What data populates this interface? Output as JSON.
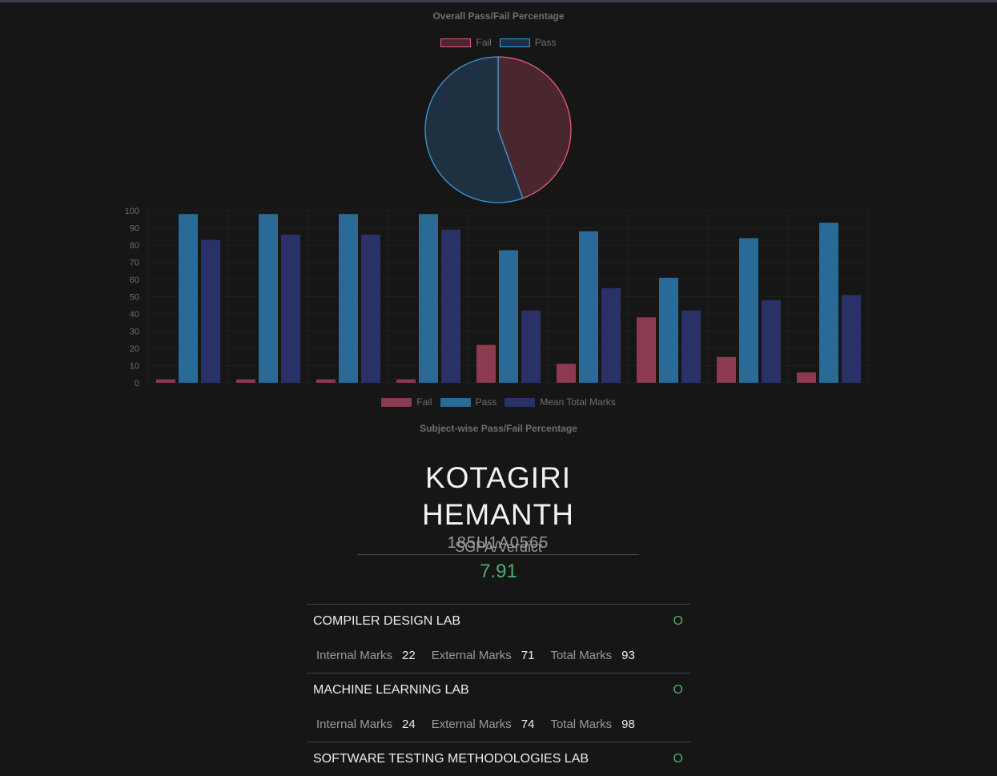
{
  "pie_chart": {
    "title": "Overall Pass/Fail Percentage",
    "legend": [
      {
        "label": "Fail",
        "fill": "#4a262f",
        "stroke": "#e85b7b"
      },
      {
        "label": "Pass",
        "fill": "#1d3142",
        "stroke": "#3a9ad9"
      }
    ]
  },
  "bar_chart": {
    "title": "Subject-wise Pass/Fail Percentage",
    "legend": [
      {
        "label": "Fail",
        "color": "#8c3a4f"
      },
      {
        "label": "Pass",
        "color": "#2a6a96"
      },
      {
        "label": "Mean Total Marks",
        "color": "#2a3166"
      }
    ]
  },
  "chart_data": [
    {
      "type": "pie",
      "title": "Overall Pass/Fail Percentage",
      "labels": [
        "Fail",
        "Pass"
      ],
      "values": [
        44.5,
        55.5
      ],
      "colors": [
        "#e85b7b",
        "#3a9ad9"
      ],
      "legend": "top"
    },
    {
      "type": "bar",
      "title": "Subject-wise Pass/Fail Percentage",
      "categories": [
        "",
        "",
        "",
        "",
        "",
        "",
        "",
        "",
        ""
      ],
      "series": [
        {
          "name": "Fail",
          "values": [
            2,
            2,
            2,
            2,
            22,
            11,
            38,
            15,
            6
          ],
          "color": "#8c3a4f"
        },
        {
          "name": "Pass",
          "values": [
            98,
            98,
            98,
            98,
            77,
            88,
            61,
            84,
            93
          ],
          "color": "#2a6a96"
        },
        {
          "name": "Mean Total Marks",
          "values": [
            83,
            86,
            86,
            89,
            42,
            55,
            42,
            48,
            51
          ],
          "color": "#2a3166"
        }
      ],
      "yticks": [
        "0",
        "10",
        "20",
        "30",
        "40",
        "50",
        "60",
        "70",
        "80",
        "90",
        "100"
      ],
      "ylim": [
        0,
        100
      ],
      "grid": true,
      "legend": "bottom"
    }
  ],
  "student": {
    "name": "KOTAGIRI HEMANTH",
    "id": "185U1A0565",
    "sgpa_label": "SGPA/Verdict",
    "sgpa_value": "7.91"
  },
  "mark_labels": {
    "internal": "Internal Marks",
    "external": "External Marks",
    "total": "Total Marks"
  },
  "subjects": [
    {
      "name": "COMPILER DESIGN LAB",
      "grade": "O",
      "internal": "22",
      "external": "71",
      "total": "93"
    },
    {
      "name": "MACHINE LEARNING LAB",
      "grade": "O",
      "internal": "24",
      "external": "74",
      "total": "98"
    },
    {
      "name": "SOFTWARE TESTING METHODOLOGIES LAB",
      "grade": "O"
    }
  ],
  "colors": {
    "background": "#161616",
    "accent_green": "#4caf6e"
  }
}
